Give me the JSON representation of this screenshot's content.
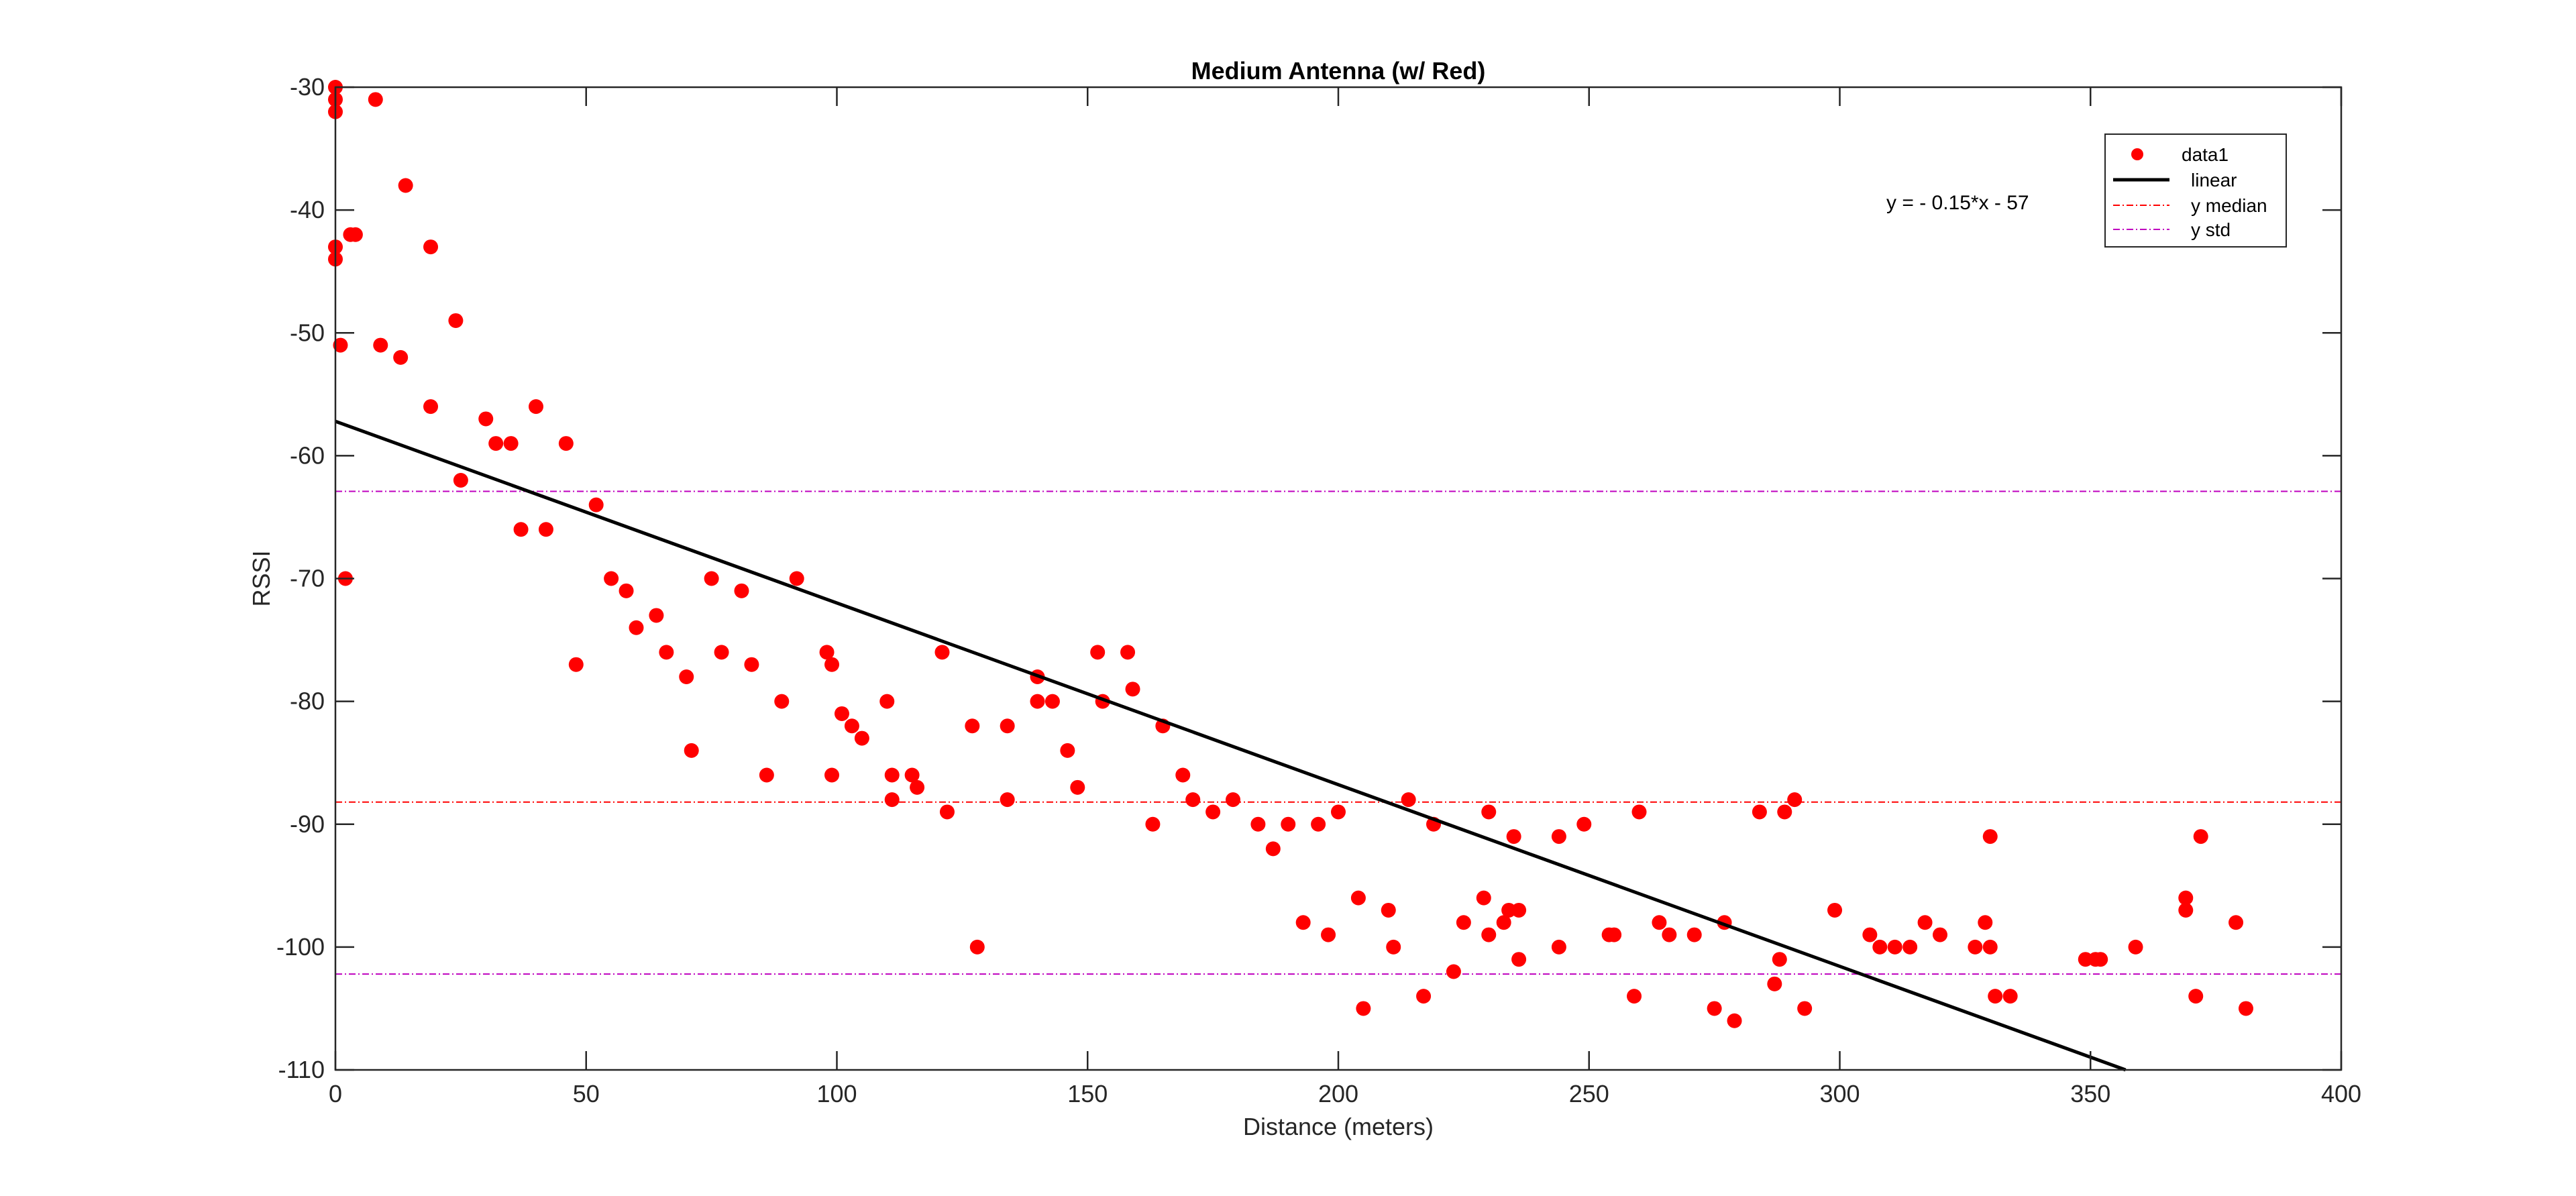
{
  "chart_data": {
    "type": "scatter",
    "title": "Medium Antenna (w/ Red)",
    "xlabel": "Distance (meters)",
    "ylabel": "RSSI",
    "xlim": [
      0,
      400
    ],
    "ylim": [
      -110,
      -30
    ],
    "xticks": [
      0,
      50,
      100,
      150,
      200,
      250,
      300,
      350,
      400
    ],
    "yticks": [
      -30,
      -40,
      -50,
      -60,
      -70,
      -80,
      -90,
      -100,
      -110
    ],
    "grid": false,
    "legend_position": "top-right",
    "annotation": "y = - 0.15*x - 57",
    "series": [
      {
        "name": "data1",
        "type": "scatter",
        "color": "#ff0000",
        "points": [
          [
            0,
            -30
          ],
          [
            0,
            -31
          ],
          [
            0,
            -32
          ],
          [
            0,
            -43
          ],
          [
            0,
            -44
          ],
          [
            1,
            -51
          ],
          [
            2,
            -70
          ],
          [
            3,
            -42
          ],
          [
            4,
            -42
          ],
          [
            8,
            -31
          ],
          [
            9,
            -51
          ],
          [
            13,
            -52
          ],
          [
            14,
            -38
          ],
          [
            19,
            -43
          ],
          [
            19,
            -56
          ],
          [
            24,
            -49
          ],
          [
            25,
            -62
          ],
          [
            30,
            -57
          ],
          [
            32,
            -59
          ],
          [
            35,
            -59
          ],
          [
            37,
            -66
          ],
          [
            40,
            -56
          ],
          [
            42,
            -66
          ],
          [
            46,
            -59
          ],
          [
            48,
            -77
          ],
          [
            52,
            -64
          ],
          [
            55,
            -70
          ],
          [
            58,
            -71
          ],
          [
            60,
            -74
          ],
          [
            64,
            -73
          ],
          [
            66,
            -76
          ],
          [
            70,
            -78
          ],
          [
            71,
            -84
          ],
          [
            75,
            -70
          ],
          [
            77,
            -76
          ],
          [
            81,
            -71
          ],
          [
            83,
            -77
          ],
          [
            86,
            -86
          ],
          [
            89,
            -80
          ],
          [
            92,
            -70
          ],
          [
            98,
            -76
          ],
          [
            99,
            -77
          ],
          [
            99,
            -86
          ],
          [
            101,
            -81
          ],
          [
            103,
            -82
          ],
          [
            105,
            -83
          ],
          [
            110,
            -80
          ],
          [
            111,
            -86
          ],
          [
            111,
            -88
          ],
          [
            115,
            -86
          ],
          [
            116,
            -87
          ],
          [
            121,
            -76
          ],
          [
            122,
            -89
          ],
          [
            127,
            -82
          ],
          [
            128,
            -100
          ],
          [
            134,
            -82
          ],
          [
            134,
            -88
          ],
          [
            140,
            -80
          ],
          [
            140,
            -78
          ],
          [
            143,
            -80
          ],
          [
            146,
            -84
          ],
          [
            148,
            -87
          ],
          [
            152,
            -76
          ],
          [
            153,
            -80
          ],
          [
            158,
            -76
          ],
          [
            159,
            -79
          ],
          [
            163,
            -90
          ],
          [
            165,
            -82
          ],
          [
            169,
            -86
          ],
          [
            171,
            -88
          ],
          [
            175,
            -89
          ],
          [
            179,
            -88
          ],
          [
            184,
            -90
          ],
          [
            187,
            -92
          ],
          [
            190,
            -90
          ],
          [
            193,
            -98
          ],
          [
            196,
            -90
          ],
          [
            198,
            -99
          ],
          [
            200,
            -89
          ],
          [
            204,
            -96
          ],
          [
            205,
            -105
          ],
          [
            210,
            -97
          ],
          [
            211,
            -100
          ],
          [
            214,
            -88
          ],
          [
            217,
            -104
          ],
          [
            219,
            -90
          ],
          [
            223,
            -102
          ],
          [
            225,
            -98
          ],
          [
            229,
            -96
          ],
          [
            230,
            -99
          ],
          [
            230,
            -89
          ],
          [
            233,
            -98
          ],
          [
            234,
            -97
          ],
          [
            235,
            -91
          ],
          [
            236,
            -97
          ],
          [
            236,
            -101
          ],
          [
            244,
            -100
          ],
          [
            244,
            -91
          ],
          [
            249,
            -90
          ],
          [
            254,
            -99
          ],
          [
            255,
            -99
          ],
          [
            259,
            -104
          ],
          [
            260,
            -89
          ],
          [
            264,
            -98
          ],
          [
            266,
            -99
          ],
          [
            271,
            -99
          ],
          [
            275,
            -105
          ],
          [
            277,
            -98
          ],
          [
            279,
            -106
          ],
          [
            284,
            -89
          ],
          [
            287,
            -103
          ],
          [
            288,
            -101
          ],
          [
            289,
            -89
          ],
          [
            291,
            -88
          ],
          [
            293,
            -105
          ],
          [
            299,
            -97
          ],
          [
            306,
            -99
          ],
          [
            308,
            -100
          ],
          [
            311,
            -100
          ],
          [
            314,
            -100
          ],
          [
            317,
            -98
          ],
          [
            320,
            -99
          ],
          [
            327,
            -100
          ],
          [
            329,
            -98
          ],
          [
            330,
            -100
          ],
          [
            330,
            -91
          ],
          [
            331,
            -104
          ],
          [
            334,
            -104
          ],
          [
            349,
            -101
          ],
          [
            351,
            -101
          ],
          [
            352,
            -101
          ],
          [
            359,
            -100
          ],
          [
            369,
            -96
          ],
          [
            369,
            -97
          ],
          [
            371,
            -104
          ],
          [
            372,
            -91
          ],
          [
            379,
            -98
          ],
          [
            381,
            -105
          ]
        ]
      },
      {
        "name": "linear",
        "type": "line",
        "color": "#000000",
        "x": [
          0,
          357
        ],
        "y": [
          -57.2,
          -110
        ]
      },
      {
        "name": "y median",
        "type": "hline",
        "color": "#ff0000",
        "y": -88.2
      },
      {
        "name": "y std",
        "type": "hline",
        "color": "#bf00bf",
        "y_values": [
          -62.9,
          -102.2
        ]
      }
    ]
  }
}
